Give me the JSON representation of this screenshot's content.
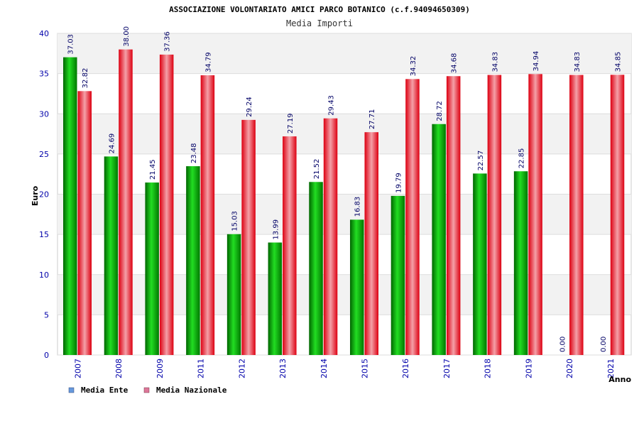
{
  "chart_data": {
    "type": "bar",
    "title": "ASSOCIAZIONE VOLONTARIATO AMICI PARCO BOTANICO (c.f.94094650309)",
    "subtitle": "Media Importi",
    "xlabel": "Anno",
    "ylabel": "Euro",
    "ylim": [
      0,
      40
    ],
    "yticks": [
      "0",
      "5",
      "10",
      "15",
      "20",
      "25",
      "30",
      "35",
      "40"
    ],
    "grid": true,
    "legend_position": "bottom-left",
    "categories": [
      "2007",
      "2008",
      "2009",
      "2011",
      "2012",
      "2013",
      "2014",
      "2015",
      "2016",
      "2017",
      "2018",
      "2019",
      "2020",
      "2021"
    ],
    "series": [
      {
        "name": "Media Ente",
        "legend_color": "#6699dd",
        "bar_color": "#11aa11",
        "values": [
          37.03,
          24.69,
          21.45,
          23.48,
          15.03,
          13.99,
          21.52,
          16.83,
          19.79,
          28.72,
          22.57,
          22.85,
          0.0,
          0.0
        ],
        "labels": [
          "37.03",
          "24.69",
          "21.45",
          "23.48",
          "15.03",
          "13.99",
          "21.52",
          "16.83",
          "19.79",
          "28.72",
          "22.57",
          "22.85",
          "0.00",
          "0.00"
        ]
      },
      {
        "name": "Media Nazionale",
        "legend_color": "#dd7799",
        "bar_color": "#ee2233",
        "values": [
          32.82,
          38.0,
          37.36,
          34.79,
          29.24,
          27.19,
          29.43,
          27.71,
          34.32,
          34.68,
          34.83,
          34.94,
          34.83,
          34.85
        ],
        "labels": [
          "32.82",
          "38.00",
          "37.36",
          "34.79",
          "29.24",
          "27.19",
          "29.43",
          "27.71",
          "34.32",
          "34.68",
          "34.83",
          "34.94",
          "34.83",
          "34.85"
        ]
      }
    ]
  }
}
